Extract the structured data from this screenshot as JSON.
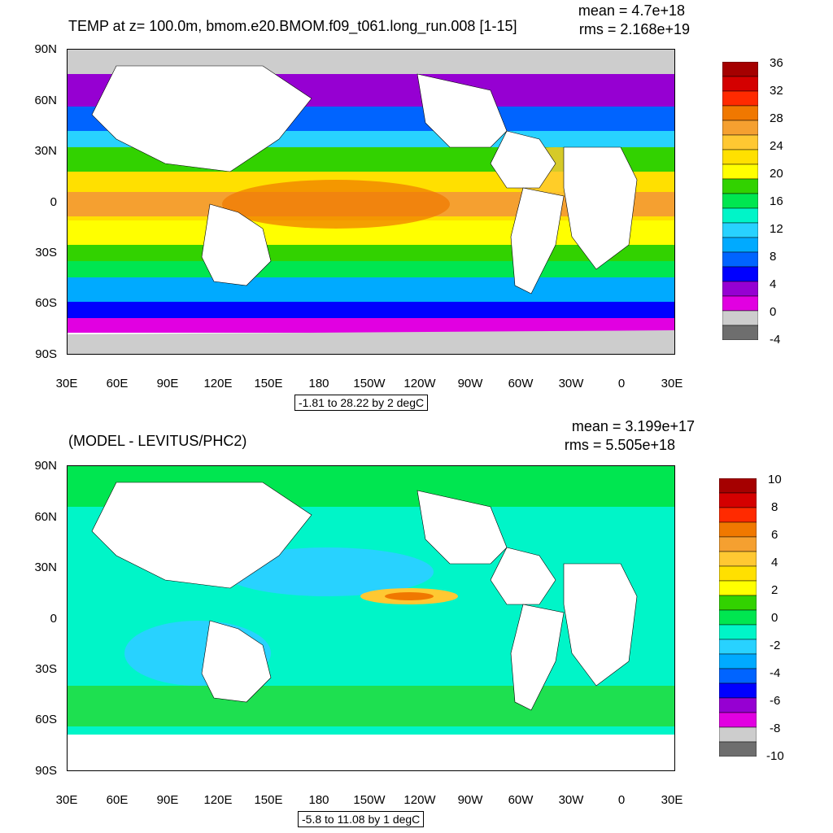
{
  "panels": [
    {
      "title": "TEMP at z= 100.0m, bmom.e20.BMOM.f09_t061.long_run.008 [1-15]",
      "mean": "mean = 4.7e+18",
      "rms": "rms = 2.168e+19",
      "y_labels": [
        "90N",
        "60N",
        "30N",
        "0",
        "30S",
        "60S",
        "90S"
      ],
      "x_labels": [
        "30E",
        "60E",
        "90E",
        "120E",
        "150E",
        "180",
        "150W",
        "120W",
        "90W",
        "60W",
        "30W",
        "0",
        "30E"
      ],
      "range_note": "-1.81 to 28.22 by 2 degC",
      "colorbar": {
        "labels": [
          "36",
          "32",
          "28",
          "24",
          "20",
          "16",
          "12",
          "8",
          "4",
          "0",
          "-4"
        ],
        "colors": [
          "#a50000",
          "#d40000",
          "#ff2a00",
          "#f07800",
          "#f5a030",
          "#ffc832",
          "#ffe000",
          "#ffff00",
          "#32d200",
          "#00e650",
          "#00f5c8",
          "#28d2ff",
          "#00aaff",
          "#0064ff",
          "#0000ff",
          "#9600d2",
          "#e100e1",
          "#cdcdcd",
          "#6e6e6e"
        ]
      }
    },
    {
      "title": "(MODEL - LEVITUS/PHC2)",
      "mean": "mean = 3.199e+17",
      "rms": "rms = 5.505e+18",
      "y_labels": [
        "90N",
        "60N",
        "30N",
        "0",
        "30S",
        "60S",
        "90S"
      ],
      "x_labels": [
        "30E",
        "60E",
        "90E",
        "120E",
        "150E",
        "180",
        "150W",
        "120W",
        "90W",
        "60W",
        "30W",
        "0",
        "30E"
      ],
      "range_note": "-5.8 to 11.08 by 1 degC",
      "colorbar": {
        "labels": [
          "10",
          "8",
          "6",
          "4",
          "2",
          "0",
          "-2",
          "-4",
          "-6",
          "-8",
          "-10"
        ],
        "colors": [
          "#a50000",
          "#d40000",
          "#ff2a00",
          "#f07800",
          "#f5a030",
          "#ffc832",
          "#ffe000",
          "#ffff00",
          "#32d200",
          "#00e650",
          "#00f5c8",
          "#28d2ff",
          "#00aaff",
          "#0064ff",
          "#0000ff",
          "#9600d2",
          "#e100e1",
          "#cdcdcd",
          "#6e6e6e"
        ]
      }
    }
  ]
}
